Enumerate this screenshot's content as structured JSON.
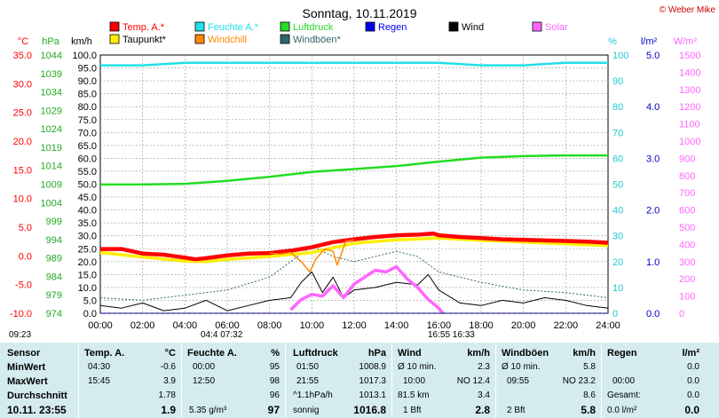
{
  "title": "Sonntag, 10.11.2019",
  "credit": "© Weber Mike",
  "legend": [
    {
      "label": "Temp. A.*",
      "color": "#ff0000"
    },
    {
      "label": "Feuchte A.*",
      "color": "#22e0e8"
    },
    {
      "label": "Luftdruck",
      "color": "#22dd22"
    },
    {
      "label": "Regen",
      "color": "#0000ee"
    },
    {
      "label": "Wind",
      "color": "#000000"
    },
    {
      "label": "Solar",
      "color": "#ff66ff"
    },
    {
      "label": "Taupunkt*",
      "color": "#ffee00"
    },
    {
      "label": "Windchill",
      "color": "#ff8800"
    },
    {
      "label": "Windböen*",
      "color": "#336666"
    }
  ],
  "axes": {
    "temp_unit": "°C",
    "press_unit": "hPa",
    "wind_unit": "km/h",
    "hum_unit": "%",
    "rain_unit": "l/m²",
    "solar_unit": "W/m²",
    "temp_ticks": [
      "35.0",
      "30.0",
      "25.0",
      "20.0",
      "15.0",
      "10.0",
      "5.0",
      "0.0",
      "-5.0",
      "-10.0"
    ],
    "press_ticks": [
      "1044",
      "1039",
      "1034",
      "1029",
      "1024",
      "1019",
      "1014",
      "1009",
      "1004",
      "999",
      "994",
      "989",
      "984",
      "979",
      "974"
    ],
    "hum_ticks": [
      "100",
      "90",
      "80",
      "70",
      "60",
      "50",
      "40",
      "30",
      "20",
      "10",
      "0"
    ],
    "rain_ticks": [
      "5.0",
      "4.0",
      "3.0",
      "2.0",
      "1.0",
      "0.0"
    ],
    "solar_ticks": [
      "1500",
      "1400",
      "1300",
      "1200",
      "1100",
      "1000",
      "900",
      "800",
      "700",
      "600",
      "500",
      "400",
      "300",
      "200",
      "100",
      "0"
    ],
    "x_ticks": [
      "00:00",
      "02:00",
      "04:00",
      "06:00",
      "08:00",
      "10:00",
      "12:00",
      "14:00",
      "16:00",
      "18:00",
      "20:00",
      "22:00",
      "24:00"
    ]
  },
  "time_notes": {
    "left": "09:23",
    "mid": "04:4 07:32",
    "right": "16:55 16:33"
  },
  "chart_data": {
    "type": "line",
    "title": "Sonntag, 10.11.2019",
    "x_unit": "hours",
    "xlim": [
      0,
      24
    ],
    "wind_axis_range": [
      0,
      100
    ],
    "series": [
      {
        "name": "Temp. A.*",
        "axis": "°C",
        "x": [
          0,
          1,
          2,
          3,
          4,
          4.5,
          5,
          6,
          7,
          8,
          9,
          10,
          11,
          12,
          13,
          14,
          15,
          15.75,
          16,
          17,
          18,
          19,
          20,
          21,
          22,
          23,
          24
        ],
        "y": [
          1.2,
          1.2,
          0.4,
          0.2,
          -0.3,
          -0.6,
          -0.4,
          0.1,
          0.4,
          0.5,
          0.9,
          1.5,
          2.4,
          2.9,
          3.3,
          3.6,
          3.7,
          3.9,
          3.6,
          3.3,
          3.1,
          2.9,
          2.8,
          2.7,
          2.6,
          2.5,
          2.3
        ]
      },
      {
        "name": "Taupunkt*",
        "axis": "°C",
        "x": [
          0,
          2,
          4,
          5,
          6,
          8,
          10,
          12,
          14,
          16,
          18,
          20,
          22,
          24
        ],
        "y": [
          0.6,
          -0.2,
          -0.9,
          -1.0,
          -0.6,
          -0.1,
          0.6,
          2.2,
          2.8,
          3.1,
          2.7,
          2.4,
          2.1,
          1.8
        ]
      },
      {
        "name": "Windchill",
        "axis": "°C",
        "x": [
          8.0,
          8.5,
          9.0,
          9.5,
          9.9,
          10.2,
          10.6,
          11.0,
          11.2,
          11.6,
          12.0
        ],
        "y": [
          0.5,
          0.3,
          0.6,
          -1.0,
          -2.8,
          -0.5,
          1.2,
          0.8,
          -1.6,
          2.5,
          2.8
        ]
      },
      {
        "name": "Feuchte A.*",
        "axis": "%",
        "x": [
          0,
          2,
          4,
          6,
          8,
          10,
          12,
          14,
          16,
          18,
          20,
          22,
          24
        ],
        "y": [
          96,
          96,
          97,
          97,
          97,
          97,
          97,
          97,
          97,
          96,
          96,
          97,
          97
        ]
      },
      {
        "name": "Luftdruck",
        "axis": "hPa",
        "x": [
          0,
          2,
          4,
          6,
          8,
          10,
          12,
          14,
          16,
          18,
          20,
          22,
          24
        ],
        "y": [
          1008.9,
          1008.9,
          1009.1,
          1009.9,
          1011.0,
          1012.3,
          1013.1,
          1013.9,
          1015.1,
          1016.2,
          1016.6,
          1016.8,
          1016.8
        ]
      },
      {
        "name": "Wind",
        "axis": "km/h",
        "x": [
          0,
          1,
          2,
          3,
          4,
          5,
          6,
          7,
          8,
          9,
          9.5,
          10,
          10.5,
          11,
          11.5,
          12,
          13,
          14,
          15,
          15.5,
          16,
          17,
          18,
          19,
          20,
          21,
          22,
          23,
          24
        ],
        "y": [
          3,
          2,
          4,
          1,
          2,
          5,
          1,
          3,
          5,
          6,
          12,
          16,
          8,
          14,
          6,
          9,
          10,
          12,
          11,
          15,
          9,
          4,
          3,
          5,
          4,
          6,
          5,
          3,
          2
        ]
      },
      {
        "name": "Windböen*",
        "axis": "km/h",
        "x": [
          0,
          2,
          4,
          6,
          8,
          10,
          11,
          12,
          14,
          15,
          16,
          18,
          20,
          22,
          24
        ],
        "y": [
          6,
          5,
          7,
          9,
          14,
          26,
          22,
          20,
          24,
          22,
          16,
          12,
          9,
          8,
          6
        ]
      },
      {
        "name": "Regen",
        "axis": "l/m²",
        "x": [
          0,
          24
        ],
        "y": [
          0,
          0
        ]
      },
      {
        "name": "Solar",
        "axis": "W/m²",
        "x": [
          9.0,
          9.5,
          10,
          10.5,
          11,
          11.5,
          12,
          12.5,
          13,
          13.5,
          14,
          14.5,
          15,
          15.5,
          16,
          16.2
        ],
        "y": [
          20,
          80,
          110,
          100,
          160,
          90,
          170,
          210,
          250,
          240,
          270,
          200,
          150,
          80,
          30,
          0
        ]
      }
    ]
  },
  "table": {
    "sensor": {
      "header": "Sensor",
      "min": "MinWert",
      "max": "MaxWert",
      "avg": "Durchschnitt",
      "now": "10.11. 23:55"
    },
    "temp": {
      "header": "Temp. A.",
      "unit": "°C",
      "min_time": "04:30",
      "min_val": "-0.6",
      "max_time": "15:45",
      "max_val": "3.9",
      "avg": "1.78",
      "now": "1.9"
    },
    "hum": {
      "header": "Feuchte A.",
      "unit": "%",
      "min_time": "00:00",
      "min_val": "95",
      "max_time": "12:50",
      "max_val": "98",
      "avg": "96",
      "extra": "5.35 g/m³",
      "now": "97"
    },
    "press": {
      "header": "Luftdruck",
      "unit": "hPa",
      "min_time": "01:50",
      "min_val": "1008.9",
      "max_time": "21:55",
      "max_val": "1017.3",
      "avg_label": "^1.1hPa/h",
      "avg": "1013.1",
      "extra": "sonnig",
      "now": "1016.8"
    },
    "wind": {
      "header": "Wind",
      "unit": "km/h",
      "r1_label": "Ø 10 min.",
      "r1_val": "2.3",
      "r2_time": "10:00",
      "r2_val": "NO 12.4",
      "r3_label": "81.5 km",
      "r3_val": "3.4",
      "extra": "1 Bft",
      "now": "2.8"
    },
    "gust": {
      "header": "Windböen",
      "unit": "km/h",
      "r1_label": "Ø 10 min.",
      "r1_val": "5.8",
      "r2_time": "09:55",
      "r2_val": "NO 23.2",
      "r3_val": "8.6",
      "extra": "2 Bft",
      "now": "5.8"
    },
    "rain": {
      "header": "Regen",
      "unit": "l/m²",
      "r1_val": "0.0",
      "r2_time": "00:00",
      "r2_val": "0.0",
      "r3_label": "Gesamt:",
      "r3_val": "0.0",
      "extra": "0.0 l/m²",
      "now": "0.0"
    }
  }
}
